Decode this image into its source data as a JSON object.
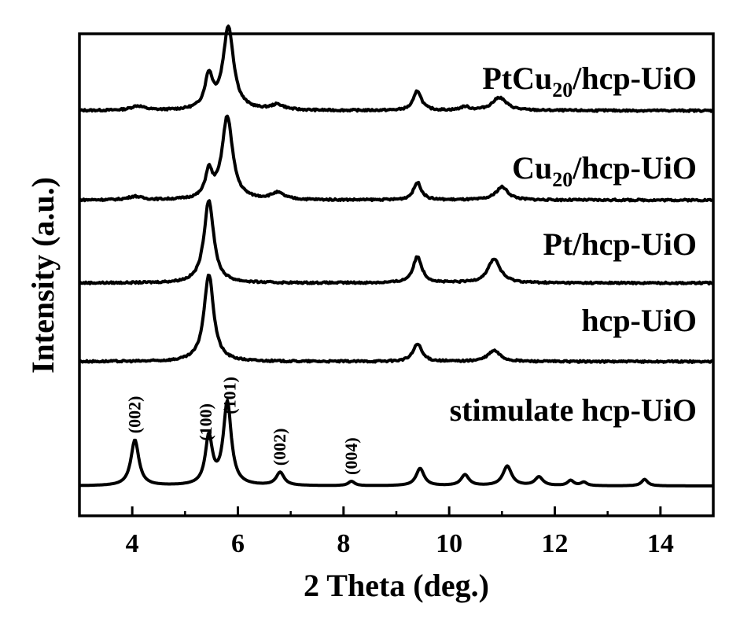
{
  "chart_data": {
    "type": "line",
    "xlabel": "2 Theta (deg.)",
    "ylabel": "Intensity (a.u.)",
    "xlim": [
      3,
      15
    ],
    "xticks": [
      4,
      6,
      8,
      10,
      12,
      14
    ],
    "grid": false,
    "legend": "labels placed above each curve, right-aligned",
    "series": [
      {
        "name": "PtCu20/hcp-UiO",
        "label_main": "PtCu",
        "label_sub": "20",
        "label_rest": "/hcp-UiO",
        "base": 0.86,
        "peaks": [
          [
            4.1,
            0.01,
            0.15
          ],
          [
            5.45,
            0.075,
            0.09
          ],
          [
            5.82,
            0.19,
            0.12
          ],
          [
            6.75,
            0.012,
            0.15
          ],
          [
            9.4,
            0.045,
            0.09
          ],
          [
            10.3,
            0.008,
            0.1
          ],
          [
            10.95,
            0.03,
            0.16
          ]
        ]
      },
      {
        "name": "Cu20/hcp-UiO",
        "label_main": "Cu",
        "label_sub": "20",
        "label_rest": "/hcp-UiO",
        "base": 0.655,
        "peaks": [
          [
            4.05,
            0.008,
            0.15
          ],
          [
            5.45,
            0.06,
            0.08
          ],
          [
            5.8,
            0.19,
            0.12
          ],
          [
            6.75,
            0.015,
            0.15
          ],
          [
            9.4,
            0.04,
            0.09
          ],
          [
            11.0,
            0.03,
            0.14
          ]
        ]
      },
      {
        "name": "Pt/hcp-UiO",
        "label_main": "Pt/hcp-UiO",
        "label_sub": "",
        "label_rest": "",
        "base": 0.465,
        "peaks": [
          [
            5.45,
            0.19,
            0.11
          ],
          [
            9.4,
            0.06,
            0.1
          ],
          [
            10.85,
            0.055,
            0.14
          ]
        ]
      },
      {
        "name": "hcp-UiO",
        "label_main": "hcp-UiO",
        "label_sub": "",
        "label_rest": "",
        "base": 0.285,
        "peaks": [
          [
            5.45,
            0.2,
            0.11
          ],
          [
            9.4,
            0.04,
            0.1
          ],
          [
            10.85,
            0.025,
            0.14
          ]
        ]
      },
      {
        "name": "stimulate hcp-UiO",
        "label_main": "stimulate hcp-UiO",
        "label_sub": "",
        "label_rest": "",
        "base": 0.0,
        "peaks": [
          [
            4.05,
            0.105,
            0.09
          ],
          [
            5.45,
            0.11,
            0.08
          ],
          [
            5.8,
            0.19,
            0.09
          ],
          [
            6.8,
            0.03,
            0.09
          ],
          [
            8.15,
            0.01,
            0.07
          ],
          [
            9.45,
            0.04,
            0.09
          ],
          [
            10.3,
            0.025,
            0.09
          ],
          [
            11.1,
            0.045,
            0.1
          ],
          [
            11.7,
            0.02,
            0.09
          ],
          [
            12.3,
            0.012,
            0.07
          ],
          [
            12.55,
            0.008,
            0.07
          ],
          [
            13.7,
            0.015,
            0.07
          ]
        ]
      }
    ],
    "peak_labels": [
      {
        "text": "(002)",
        "x": 4.05
      },
      {
        "text": "(100)",
        "x": 5.4
      },
      {
        "text": "(101)",
        "x": 5.85
      },
      {
        "text": "(002)",
        "x": 6.8
      },
      {
        "text": "(004)",
        "x": 8.15
      }
    ]
  }
}
